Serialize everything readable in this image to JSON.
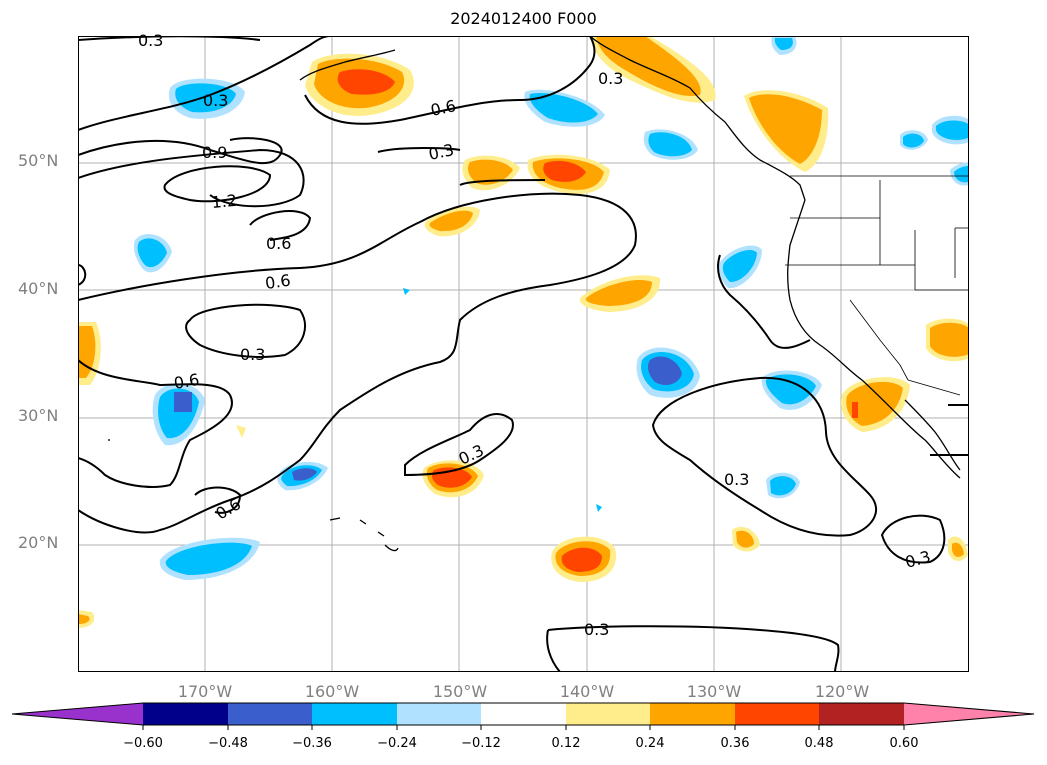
{
  "map": {
    "title": "2024012400 F000",
    "lat_labels": [
      "50°N",
      "40°N",
      "30°N",
      "20°N"
    ],
    "lon_labels": [
      "170°W",
      "160°W",
      "150°W",
      "140°W",
      "130°W",
      "120°W"
    ],
    "contour_labels": [
      "0.3",
      "0.3",
      "0.6",
      "0.3",
      "0.9",
      "1.2",
      "0.6",
      "0.6",
      "0.3",
      "0.6",
      "0.3",
      "0.6",
      "0.3",
      "0.3",
      "0.3",
      "0.3"
    ],
    "graticule": true
  },
  "colorbar": {
    "ticks": [
      "−0.60",
      "−0.48",
      "−0.36",
      "−0.24",
      "−0.12",
      "0.12",
      "0.24",
      "0.36",
      "0.48",
      "0.60"
    ],
    "colors": [
      "#9932cc",
      "#00008b",
      "#3a5fcd",
      "#00bfff",
      "#b0e2ff",
      "#ffffff",
      "#ffec8b",
      "#ffa500",
      "#ff4500",
      "#b22222",
      "#ff82ab"
    ],
    "extend": "both"
  }
}
